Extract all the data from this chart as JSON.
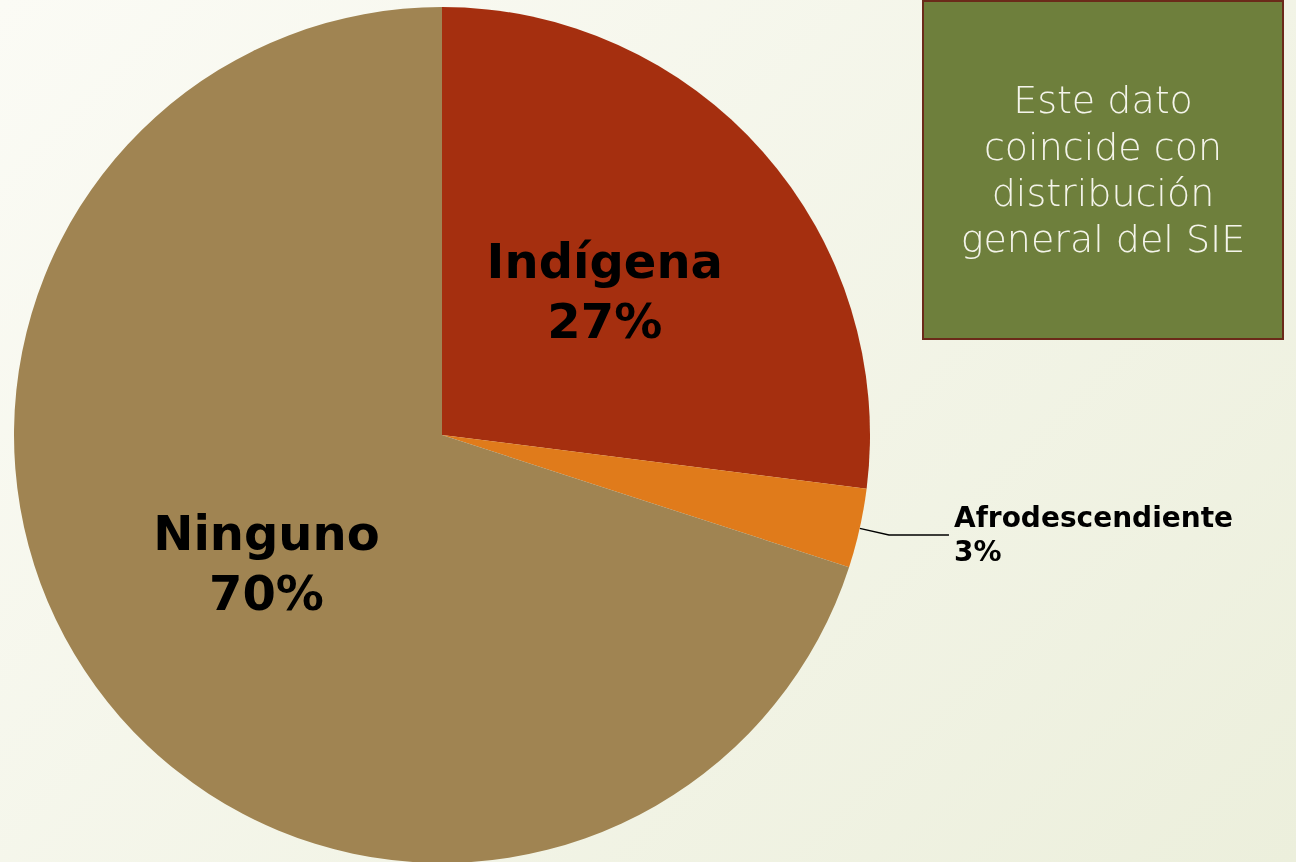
{
  "chart_data": {
    "type": "pie",
    "categories": [
      "Indígena",
      "Afrodescendiente",
      "Ninguno"
    ],
    "values": [
      27,
      3,
      70
    ],
    "value_labels": [
      "27%",
      "3%",
      "70%"
    ],
    "colors": [
      "#a52f0f",
      "#e07b1b",
      "#a08452"
    ],
    "legend": false,
    "annotations": [
      "Este dato coincide con distribución general del SIE"
    ]
  }
}
